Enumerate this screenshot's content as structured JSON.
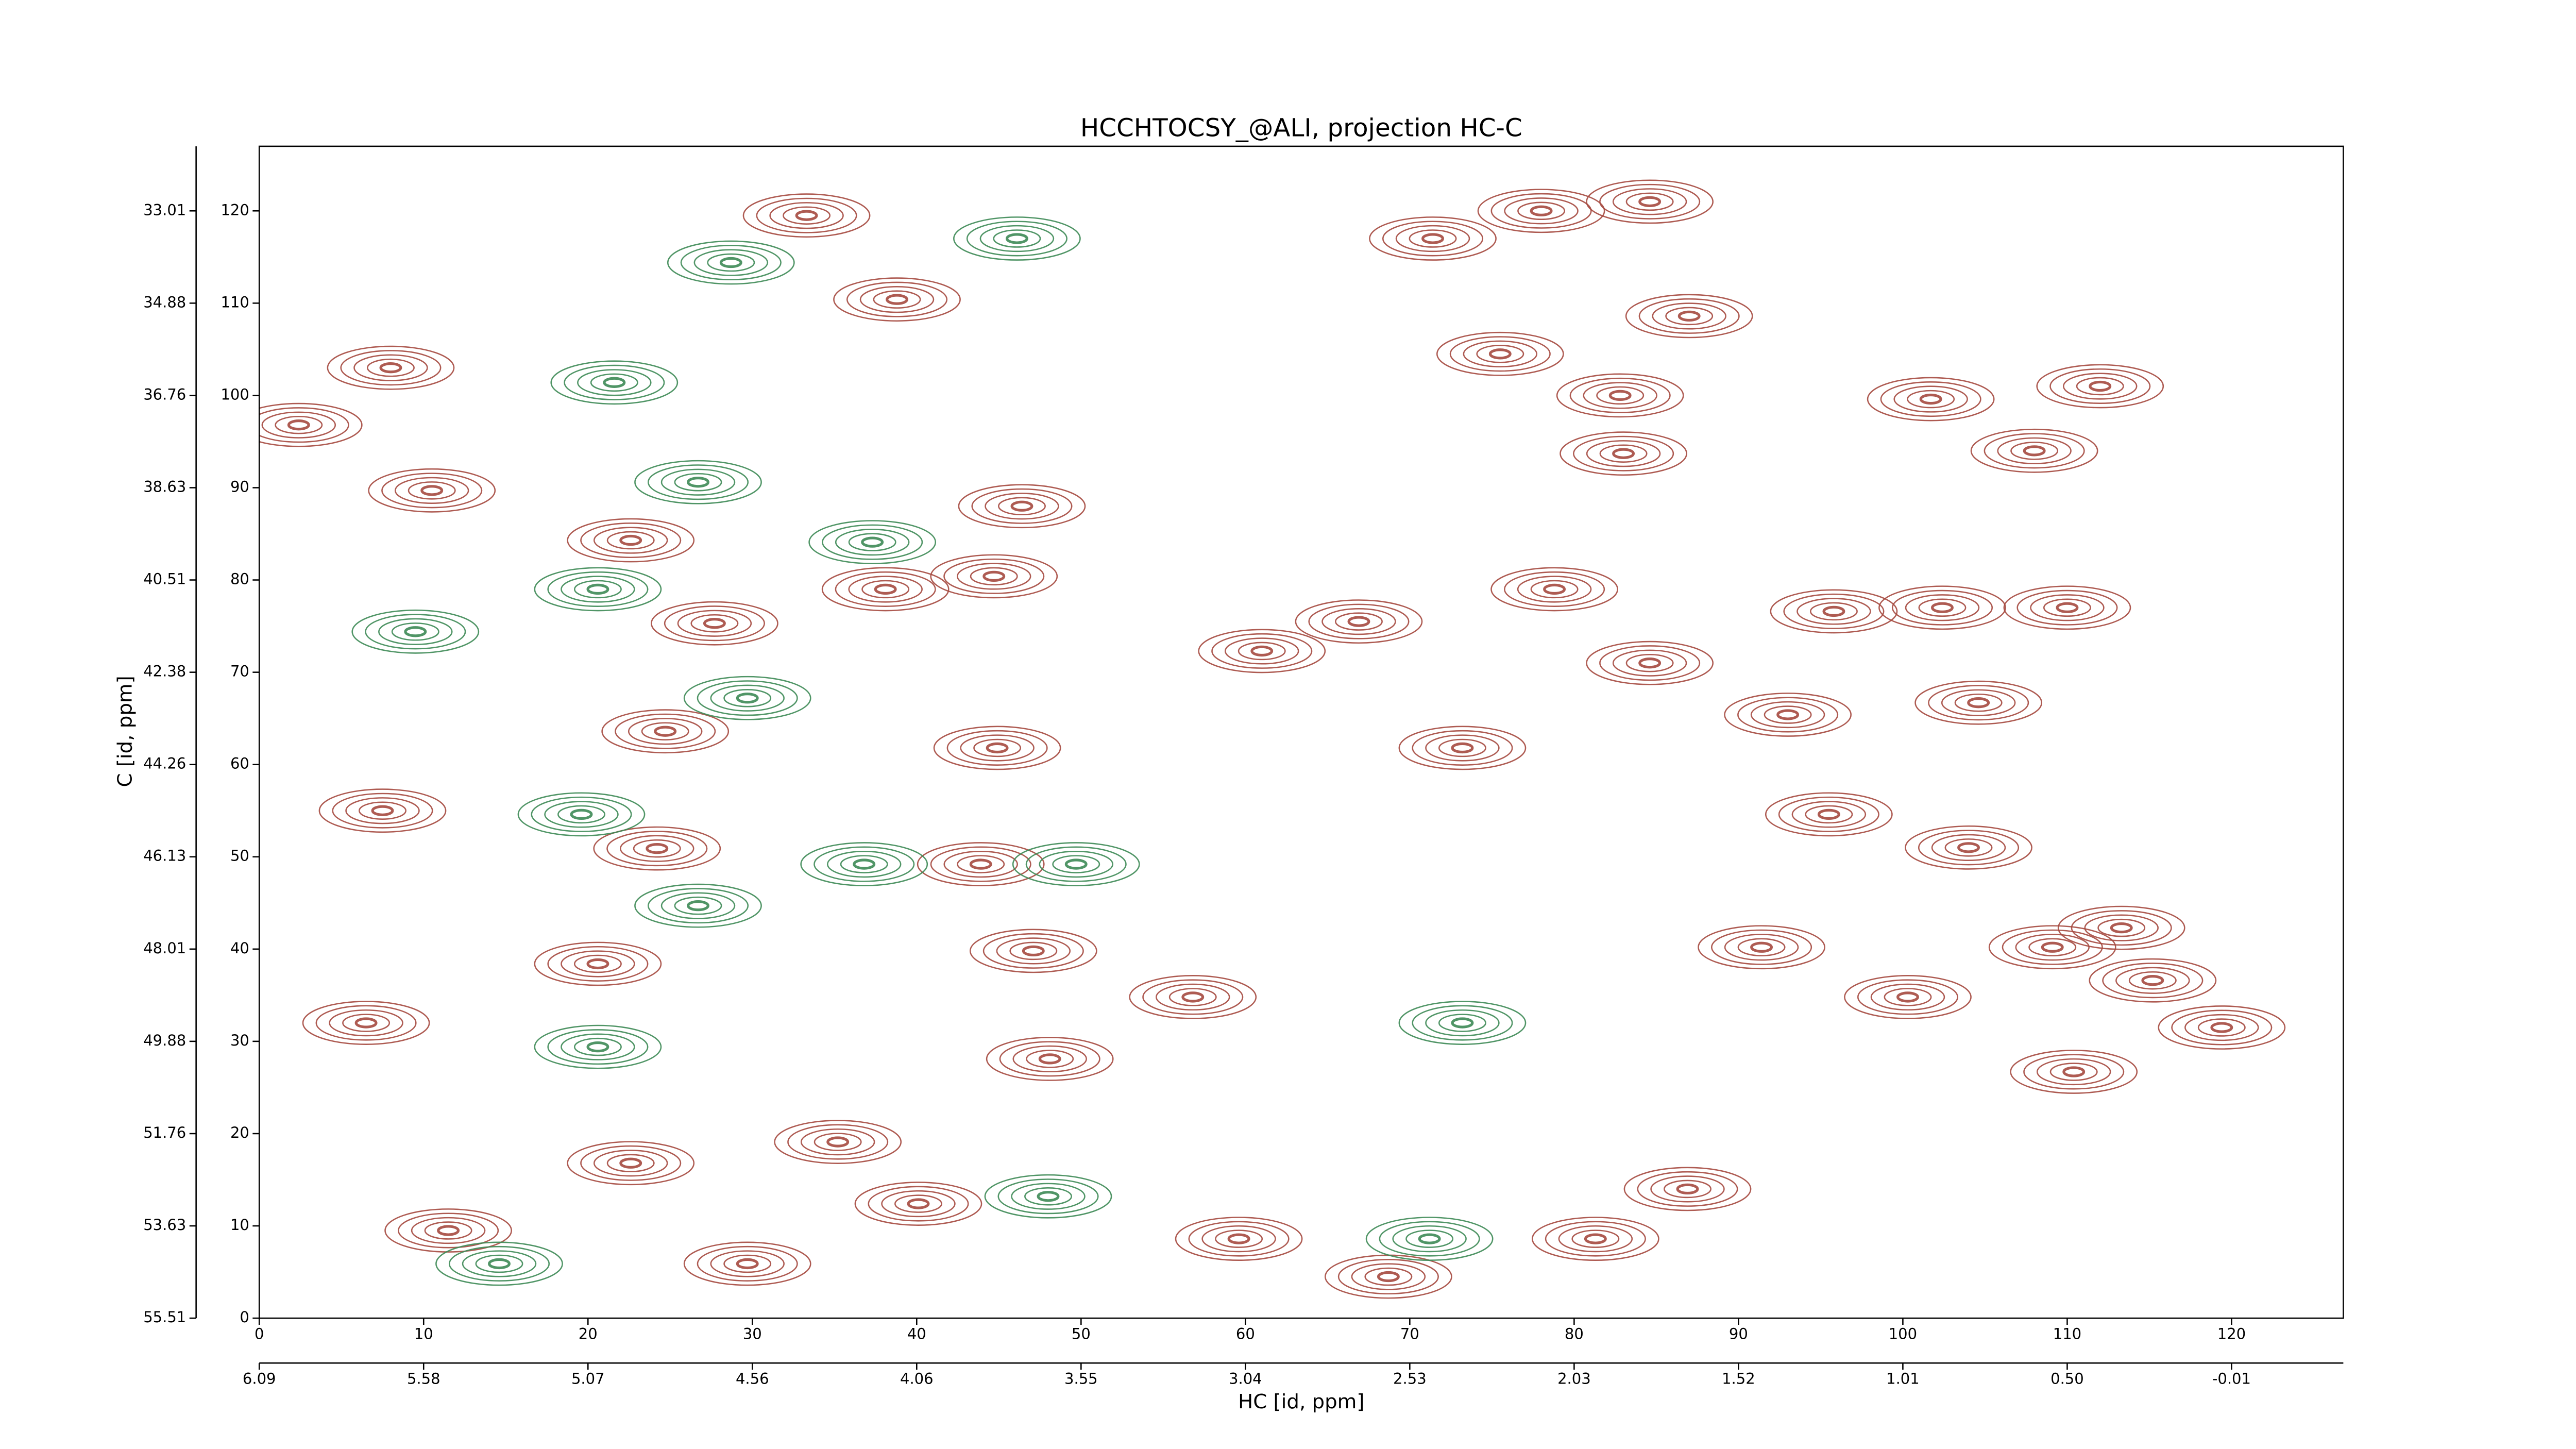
{
  "chart_data": {
    "type": "contour",
    "title": "HCCHTOCSY_@ALI, projection HC-C",
    "xlabel": "HC [id, ppm]",
    "ylabel": "C [id, ppm]",
    "xlim": [
      0,
      126.8
    ],
    "ylim": [
      0,
      127
    ],
    "xticks": [
      0,
      10,
      20,
      30,
      40,
      50,
      60,
      70,
      80,
      90,
      100,
      110,
      120
    ],
    "yticks": [
      0,
      10,
      20,
      30,
      40,
      50,
      60,
      70,
      80,
      90,
      100,
      110,
      120
    ],
    "x2ticks": [
      {
        "value": 0,
        "label": "6.09"
      },
      {
        "value": 10,
        "label": "5.58"
      },
      {
        "value": 20,
        "label": "5.07"
      },
      {
        "value": 30,
        "label": "4.56"
      },
      {
        "value": 40,
        "label": "4.06"
      },
      {
        "value": 50,
        "label": "3.55"
      },
      {
        "value": 60,
        "label": "3.04"
      },
      {
        "value": 70,
        "label": "2.53"
      },
      {
        "value": 80,
        "label": "2.03"
      },
      {
        "value": 90,
        "label": "1.52"
      },
      {
        "value": 100,
        "label": "1.01"
      },
      {
        "value": 110,
        "label": "0.50"
      },
      {
        "value": 120,
        "label": "-0.01"
      }
    ],
    "y2ticks": [
      {
        "value": 0,
        "label": "55.51"
      },
      {
        "value": 10,
        "label": "53.63"
      },
      {
        "value": 20,
        "label": "51.76"
      },
      {
        "value": 30,
        "label": "49.88"
      },
      {
        "value": 40,
        "label": "48.01"
      },
      {
        "value": 50,
        "label": "46.13"
      },
      {
        "value": 60,
        "label": "44.26"
      },
      {
        "value": 70,
        "label": "42.38"
      },
      {
        "value": 80,
        "label": "40.51"
      },
      {
        "value": 90,
        "label": "38.63"
      },
      {
        "value": 100,
        "label": "36.76"
      },
      {
        "value": 110,
        "label": "34.88"
      },
      {
        "value": 120,
        "label": "33.01"
      }
    ],
    "series": [
      {
        "color": "#a5493f",
        "x": [
          78,
          84.6,
          71.4,
          75.5,
          87,
          82.8,
          83,
          101.7,
          108,
          112,
          102.4,
          95.8,
          110,
          78.8,
          66.9,
          61,
          84.6,
          93,
          104.6,
          46.4,
          44.7,
          38.1,
          44.9,
          33.3,
          38.8,
          47.1,
          56.8,
          48.1,
          35.2,
          40.1,
          59.6,
          68.7,
          91.4,
          100.3,
          86.9,
          81.3,
          109.1,
          113.3,
          115.2,
          110.4,
          119.4,
          104,
          95.5,
          24.2,
          24.7,
          27.7,
          22.6,
          10.5,
          8,
          2.4,
          7.5,
          6.5,
          11.5,
          22.6,
          29.7,
          73.2,
          20.6,
          43.9
        ],
        "y": [
          120,
          121,
          117,
          104.5,
          108.6,
          100,
          93.7,
          99.6,
          94,
          101,
          77,
          76.6,
          77,
          79,
          75.5,
          72.3,
          71,
          65.4,
          66.7,
          88,
          80.4,
          79,
          61.8,
          119.5,
          110.4,
          39.8,
          34.8,
          28.1,
          19.1,
          12.4,
          8.6,
          4.5,
          40.2,
          34.8,
          14,
          8.6,
          40.2,
          42.3,
          36.6,
          26.7,
          31.5,
          51,
          54.6,
          50.9,
          63.6,
          75.3,
          84.3,
          89.7,
          103,
          96.8,
          55,
          32,
          9.5,
          16.8,
          5.9,
          61.8,
          38.4,
          49.2
        ]
      },
      {
        "color": "#3d8a55",
        "x": [
          28.7,
          21.6,
          26.7,
          20.6,
          29.7,
          19.6,
          26.7,
          20.6,
          14.6,
          37.3,
          36.8,
          46.1,
          49.7,
          73.2,
          9.5,
          48,
          71.2
        ],
        "y": [
          114.4,
          101.4,
          90.6,
          79,
          67.2,
          54.6,
          44.7,
          29.4,
          5.9,
          84.1,
          49.2,
          117,
          49.2,
          32,
          74.4,
          13.2,
          8.6
        ]
      }
    ]
  }
}
